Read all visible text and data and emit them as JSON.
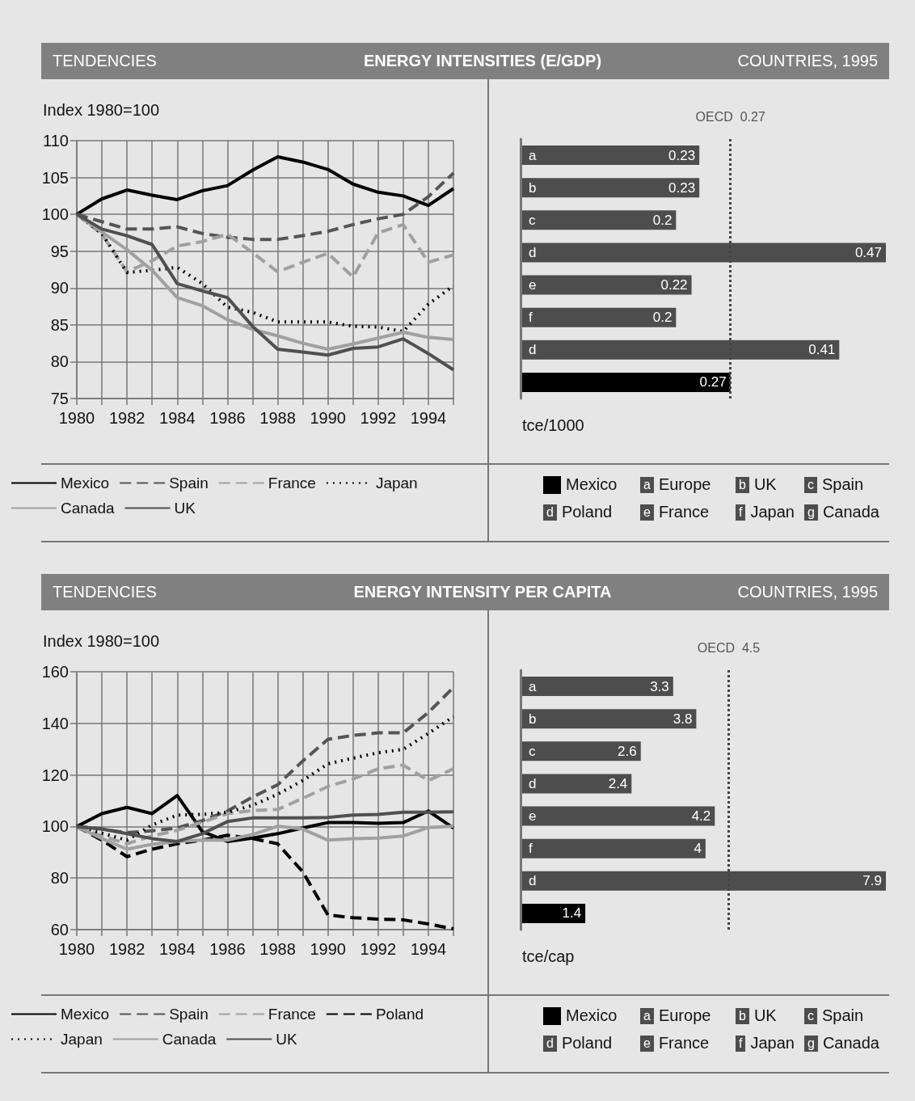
{
  "chart_data": [
    {
      "type": "line",
      "subtitle": "TENDENCIES",
      "title": "ENERGY INTENSITIES (E/GDP)",
      "ylabel": "Index 1980=100",
      "x": [
        1980,
        1981,
        1982,
        1983,
        1984,
        1985,
        1986,
        1987,
        1988,
        1989,
        1990,
        1991,
        1992,
        1993,
        1994,
        1995
      ],
      "xlim": [
        1980,
        1995
      ],
      "xticks": [
        1980,
        {
          "value": 1981,
          "label": null
        },
        1982,
        {
          "value": 1983,
          "label": null
        },
        1984,
        {
          "value": 1985,
          "label": null
        },
        1986,
        {
          "value": 1987,
          "label": null
        },
        1988,
        {
          "value": 1989,
          "label": null
        },
        1990,
        {
          "value": 1991,
          "label": null
        },
        1992,
        {
          "value": 1993,
          "label": null
        },
        1994,
        {
          "value": 1995,
          "label": null
        }
      ],
      "ylim": [
        75,
        110
      ],
      "yticks": [
        75,
        80,
        85,
        90,
        95,
        100,
        105,
        110
      ],
      "grid": true,
      "legend": "bottom",
      "series": [
        {
          "name": "Mexico",
          "color": "#000000",
          "line_style": "solid",
          "values": [
            100,
            102.1,
            103.3,
            102.6,
            102.0,
            103.2,
            103.9,
            106.0,
            107.8,
            107.1,
            106.1,
            104.1,
            103.0,
            102.5,
            101.2,
            103.5
          ]
        },
        {
          "name": "Spain",
          "color": "#555555",
          "line_style": "dashed",
          "values": [
            100,
            99.0,
            98.0,
            98.0,
            98.3,
            97.4,
            96.9,
            96.6,
            96.6,
            97.1,
            97.7,
            98.6,
            99.4,
            100.0,
            102.4,
            105.6
          ]
        },
        {
          "name": "France",
          "color": "#a0a0a0",
          "line_style": "dashed",
          "values": [
            100,
            97.3,
            92.2,
            93.7,
            95.7,
            96.3,
            97.3,
            94.8,
            92.2,
            93.5,
            94.7,
            91.5,
            97.5,
            98.6,
            93.5,
            94.5
          ]
        },
        {
          "name": "Japan",
          "color": "#000000",
          "line_style": "dotted",
          "values": [
            100,
            97.4,
            92.1,
            92.4,
            92.8,
            90.6,
            87.4,
            86.7,
            85.4,
            85.4,
            85.4,
            84.8,
            84.7,
            84.1,
            87.8,
            90.3
          ]
        },
        {
          "name": "Canada",
          "color": "#a0a0a0",
          "line_style": "solid",
          "values": [
            100,
            97.6,
            95.2,
            92.4,
            88.7,
            87.6,
            85.7,
            84.4,
            83.5,
            82.5,
            81.7,
            82.4,
            83.2,
            84.0,
            83.3,
            83.0
          ]
        },
        {
          "name": "UK",
          "color": "#505050",
          "line_style": "solid",
          "values": [
            100,
            98.0,
            97.1,
            95.9,
            90.6,
            89.6,
            88.7,
            84.8,
            81.7,
            81.3,
            80.9,
            81.8,
            82.0,
            83.1,
            81.1,
            78.9
          ]
        }
      ]
    },
    {
      "type": "bar",
      "orientation": "horizontal",
      "title": "COUNTRIES, 1995",
      "xlabel": "tce/1000",
      "categories": [
        "a",
        "b",
        "c",
        "d",
        "e",
        "f",
        "d",
        null
      ],
      "values": [
        0.23,
        0.23,
        0.2,
        0.47,
        0.22,
        0.2,
        0.41,
        0.27
      ],
      "colors": [
        "#4d4d4d",
        "#4d4d4d",
        "#4d4d4d",
        "#4d4d4d",
        "#4d4d4d",
        "#4d4d4d",
        "#4d4d4d",
        "#000000"
      ],
      "data_labels": true,
      "tick_labels": "y",
      "ref_lines": [
        {
          "axis": "x",
          "value": 0.27,
          "label": "OECD  0.27",
          "line_style": "dotted"
        }
      ],
      "annotations": [
        "Mexico",
        "a Europe",
        "b UK",
        "c Spain",
        "d Poland",
        "e France",
        "f Japan",
        "g Canada"
      ]
    },
    {
      "type": "line",
      "subtitle": "TENDENCIES",
      "title": "ENERGY INTENSITY PER CAPITA",
      "ylabel": "Index 1980=100",
      "x": [
        1980,
        1981,
        1982,
        1983,
        1984,
        1985,
        1986,
        1987,
        1988,
        1989,
        1990,
        1991,
        1992,
        1993,
        1994,
        1995
      ],
      "xlim": [
        1980,
        1995
      ],
      "xticks": [
        1980,
        {
          "value": 1981,
          "label": null
        },
        1982,
        {
          "value": 1983,
          "label": null
        },
        1984,
        {
          "value": 1985,
          "label": null
        },
        1986,
        {
          "value": 1987,
          "label": null
        },
        1988,
        {
          "value": 1989,
          "label": null
        },
        1990,
        {
          "value": 1991,
          "label": null
        },
        1992,
        {
          "value": 1993,
          "label": null
        },
        1994,
        {
          "value": 1995,
          "label": null
        }
      ],
      "ylim": [
        60,
        160
      ],
      "yticks": [
        60,
        80,
        100,
        120,
        140,
        160
      ],
      "grid": true,
      "legend": "bottom",
      "series": [
        {
          "name": "Mexico",
          "color": "#000000",
          "line_style": "solid",
          "values": [
            100,
            105,
            107.4,
            105,
            112.0,
            98,
            94.2,
            95.5,
            97.2,
            99.4,
            101.5,
            101.5,
            101.2,
            101.5,
            106,
            99.4
          ]
        },
        {
          "name": "Spain",
          "color": "#555555",
          "line_style": "dashed",
          "values": [
            100,
            99,
            97.6,
            98.3,
            99.4,
            102.3,
            106,
            111.4,
            116.2,
            125.4,
            133.8,
            135.3,
            136.3,
            136.3,
            144.2,
            153.9
          ]
        },
        {
          "name": "France",
          "color": "#a0a0a0",
          "line_style": "dashed",
          "values": [
            100,
            96.3,
            93.3,
            96.3,
            98.5,
            101.7,
            105,
            106.2,
            106.6,
            110.9,
            115.5,
            118.4,
            122.4,
            123.8,
            117.8,
            122.4
          ]
        },
        {
          "name": "Poland",
          "color": "#000000",
          "line_style": "dashed",
          "values": [
            100,
            94.7,
            88.3,
            91.2,
            93.3,
            94.7,
            96.6,
            95.3,
            93.3,
            82.4,
            65.7,
            64.6,
            64.1,
            63.8,
            62.2,
            60.3
          ]
        },
        {
          "name": "Japan",
          "color": "#000000",
          "line_style": "dotted",
          "values": [
            100,
            97.4,
            94.7,
            100.6,
            104.4,
            104.7,
            105.5,
            108.2,
            112.5,
            117.8,
            124.3,
            126.5,
            128.6,
            129.9,
            136.1,
            142.6
          ]
        },
        {
          "name": "Canada",
          "color": "#a0a0a0",
          "line_style": "solid",
          "values": [
            100,
            95.3,
            91.2,
            93.1,
            94.2,
            94.7,
            94.7,
            96.9,
            100.1,
            99,
            94.7,
            95.3,
            95.5,
            96.3,
            99.6,
            100.1
          ]
        },
        {
          "name": "UK",
          "color": "#505050",
          "line_style": "solid",
          "values": [
            100,
            99,
            97.2,
            95.3,
            94.2,
            97.2,
            101.9,
            103.3,
            103.3,
            103.3,
            103.5,
            104.4,
            104.7,
            105.5,
            105.5,
            105.7
          ]
        }
      ]
    },
    {
      "type": "bar",
      "orientation": "horizontal",
      "title": "COUNTRIES, 1995",
      "xlabel": "tce/cap",
      "categories": [
        "a",
        "b",
        "c",
        "d",
        "e",
        "f",
        "d",
        null
      ],
      "values": [
        3.3,
        3.8,
        2.6,
        2.4,
        4.2,
        4,
        7.9,
        1.4
      ],
      "colors": [
        "#4d4d4d",
        "#4d4d4d",
        "#4d4d4d",
        "#4d4d4d",
        "#4d4d4d",
        "#4d4d4d",
        "#4d4d4d",
        "#000000"
      ],
      "data_labels": true,
      "tick_labels": "y",
      "ref_lines": [
        {
          "axis": "x",
          "value": 4.5,
          "label": "OECD  4.5",
          "line_style": "dotted"
        }
      ],
      "annotations": [
        "Mexico",
        "a Europe",
        "b UK",
        "c Spain",
        "d Poland",
        "e France",
        "f Japan",
        "g Canada"
      ]
    }
  ]
}
